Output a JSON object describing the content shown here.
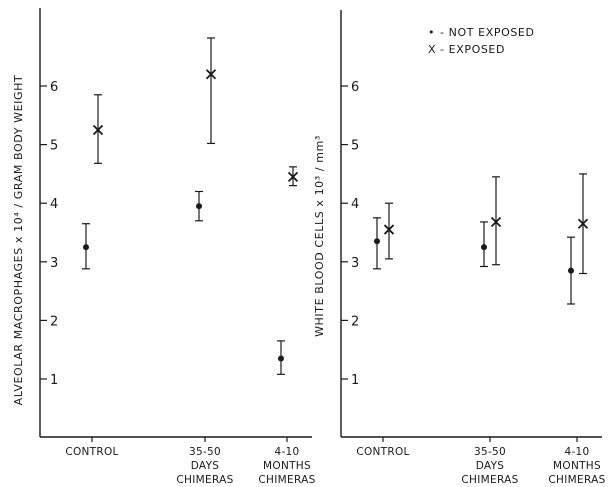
{
  "chart_data": [
    {
      "type": "scatter",
      "ylabel": "ALVEOLAR MACROPHAGES x 10⁴ / GRAM BODY WEIGHT",
      "categories": [
        [
          "CONTROL"
        ],
        [
          "35-50",
          "DAYS",
          "CHIMERAS"
        ],
        [
          "4-10",
          "MONTHS",
          "CHIMERAS"
        ]
      ],
      "yticks": [
        "1",
        "2",
        "3",
        "4",
        "5",
        "6"
      ],
      "ylim": [
        0,
        6.85
      ],
      "series": [
        {
          "marker": "dot",
          "values": [
            3.25,
            3.95,
            1.35
          ],
          "lower": [
            2.88,
            3.7,
            1.08
          ],
          "upper": [
            3.65,
            4.2,
            1.65
          ]
        },
        {
          "marker": "x",
          "values": [
            5.25,
            6.2,
            4.45
          ],
          "lower": [
            4.68,
            5.02,
            4.3
          ],
          "upper": [
            5.85,
            6.82,
            4.62
          ]
        }
      ]
    },
    {
      "type": "scatter",
      "ylabel": "WHITE BLOOD CELLS x 10³ / mm³",
      "categories": [
        [
          "CONTROL"
        ],
        [
          "35-50",
          "DAYS",
          "CHIMERAS"
        ],
        [
          "4-10",
          "MONTHS",
          "CHIMERAS"
        ]
      ],
      "yticks": [
        "1",
        "2",
        "3",
        "4",
        "5",
        "6"
      ],
      "ylim": [
        0,
        6.85
      ],
      "legend": {
        "placement": "top-right",
        "items": [
          {
            "symbol": "•",
            "label": "- NOT EXPOSED"
          },
          {
            "symbol": "X",
            "label": "- EXPOSED"
          }
        ]
      },
      "series": [
        {
          "marker": "dot",
          "values": [
            3.35,
            3.25,
            2.85
          ],
          "lower": [
            2.88,
            2.92,
            2.28
          ],
          "upper": [
            3.75,
            3.68,
            3.42
          ]
        },
        {
          "marker": "x",
          "values": [
            3.55,
            3.68,
            3.65
          ],
          "lower": [
            3.05,
            2.95,
            2.8
          ],
          "upper": [
            4.0,
            4.45,
            4.5
          ]
        }
      ]
    }
  ]
}
